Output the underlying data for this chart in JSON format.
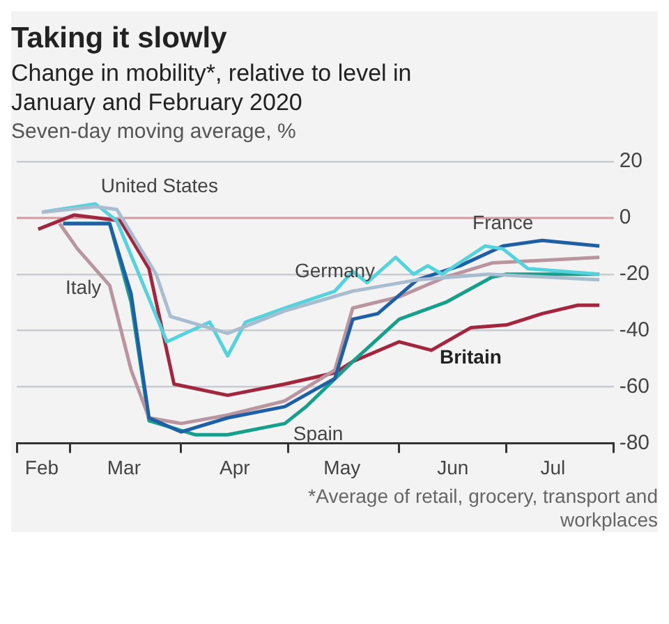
{
  "chart_data": {
    "type": "line",
    "title": "Taking it slowly",
    "subtitle": "Change in mobility*, relative to level in January and February 2020",
    "annotations": [
      "Seven-day moving average, %",
      "*Average of retail, grocery, transport and workplaces"
    ],
    "xlim": [
      "2020-02-15",
      "2020-07-31"
    ],
    "xticks": [
      {
        "value": "2020-02-15",
        "label": null
      },
      {
        "value": "2020-02-22",
        "label": "Feb"
      },
      {
        "value": "2020-03-01",
        "label": null
      },
      {
        "value": "2020-03-16",
        "label": "Mar"
      },
      {
        "value": "2020-04-01",
        "label": null
      },
      {
        "value": "2020-04-16",
        "label": "Apr"
      },
      {
        "value": "2020-05-01",
        "label": null
      },
      {
        "value": "2020-05-16",
        "label": "May"
      },
      {
        "value": "2020-06-01",
        "label": null
      },
      {
        "value": "2020-06-16",
        "label": "Jun"
      },
      {
        "value": "2020-07-01",
        "label": null
      },
      {
        "value": "2020-07-14",
        "label": "Jul"
      },
      {
        "value": "2020-07-31",
        "label": null
      }
    ],
    "ylim": [
      -80,
      20
    ],
    "yticks": [
      20,
      0,
      -20,
      -40,
      -60,
      -80
    ],
    "ref_lines": [
      {
        "axis": "y",
        "value": 0,
        "color": "#d39aa0"
      }
    ],
    "grid": "y",
    "legend": false,
    "marker": "none",
    "line_style": "solid",
    "series": [
      {
        "name": "United States",
        "color": "#a9bdd0",
        "x": [
          "2020-02-22",
          "2020-03-08",
          "2020-03-14",
          "2020-03-25",
          "2020-03-29",
          "2020-04-14",
          "2020-04-30",
          "2020-05-19",
          "2020-06-06",
          "2020-06-26",
          "2020-07-27"
        ],
        "values": [
          2,
          4,
          3,
          -20,
          -35,
          -41,
          -33,
          -26,
          -22,
          -20,
          -22
        ]
      },
      {
        "name": "Germany",
        "color": "#55d3dd",
        "x": [
          "2020-02-22",
          "2020-03-08",
          "2020-03-14",
          "2020-03-28",
          "2020-04-09",
          "2020-04-14",
          "2020-04-19",
          "2020-04-30",
          "2020-05-14",
          "2020-05-19",
          "2020-05-23",
          "2020-05-31",
          "2020-06-05",
          "2020-06-09",
          "2020-06-13",
          "2020-06-25",
          "2020-06-30",
          "2020-07-07",
          "2020-07-27"
        ],
        "values": [
          2,
          5,
          -1,
          -44,
          -37,
          -49,
          -37,
          -32,
          -26,
          -19,
          -23,
          -14,
          -20,
          -17,
          -20,
          -10,
          -11,
          -18,
          -20
        ]
      },
      {
        "name": "France",
        "color": "#1f5fa6",
        "x": [
          "2020-02-28",
          "2020-03-12",
          "2020-03-18",
          "2020-03-23",
          "2020-04-01",
          "2020-04-14",
          "2020-04-30",
          "2020-05-14",
          "2020-05-19",
          "2020-05-26",
          "2020-06-06",
          "2020-06-18",
          "2020-06-30",
          "2020-07-11",
          "2020-07-27"
        ],
        "values": [
          -2,
          -2,
          -27,
          -71,
          -76,
          -71,
          -67,
          -57,
          -36,
          -34,
          -22,
          -17,
          -10,
          -8,
          -10
        ]
      },
      {
        "name": "Italy",
        "color": "#b8959f",
        "x": [
          "2020-02-27",
          "2020-03-03",
          "2020-03-12",
          "2020-03-18",
          "2020-03-23",
          "2020-04-01",
          "2020-04-14",
          "2020-04-30",
          "2020-05-14",
          "2020-05-19",
          "2020-06-01",
          "2020-06-14",
          "2020-06-27",
          "2020-07-27"
        ],
        "values": [
          -2,
          -11,
          -24,
          -54,
          -71,
          -73,
          -70,
          -65,
          -54,
          -32,
          -28,
          -21,
          -16,
          -14
        ]
      },
      {
        "name": "Spain",
        "color": "#16a08c",
        "x": [
          "2020-02-28",
          "2020-03-12",
          "2020-03-18",
          "2020-03-23",
          "2020-04-05",
          "2020-04-14",
          "2020-04-30",
          "2020-05-06",
          "2020-05-19",
          "2020-06-01",
          "2020-06-14",
          "2020-06-27",
          "2020-07-01",
          "2020-07-27"
        ],
        "values": [
          -2,
          -2,
          -30,
          -72,
          -77,
          -77,
          -73,
          -67,
          -51,
          -36,
          -30,
          -21,
          -20,
          -20
        ]
      },
      {
        "name": "Britain",
        "color": "#a3263f",
        "x": [
          "2020-02-21",
          "2020-03-02",
          "2020-03-15",
          "2020-03-23",
          "2020-03-30",
          "2020-04-14",
          "2020-04-30",
          "2020-05-14",
          "2020-05-19",
          "2020-06-01",
          "2020-06-10",
          "2020-06-21",
          "2020-07-01",
          "2020-07-11",
          "2020-07-21",
          "2020-07-27"
        ],
        "values": [
          -4,
          1,
          -1,
          -18,
          -59,
          -63,
          -59,
          -55,
          -51,
          -44,
          -47,
          -39,
          -38,
          -34,
          -31,
          -31
        ]
      }
    ]
  }
}
